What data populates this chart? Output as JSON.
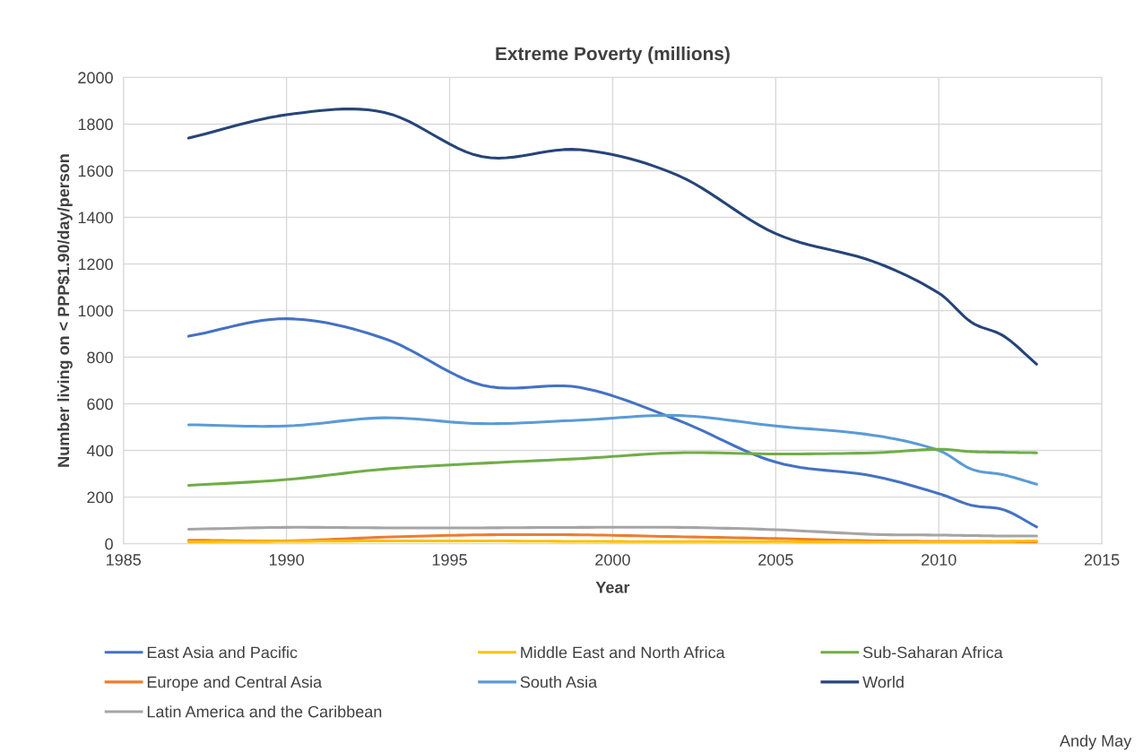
{
  "chart_data": {
    "type": "line",
    "title": "Extreme Poverty (millions)",
    "xlabel": "Year",
    "ylabel": "Number living on < PPP$1.90/day/person",
    "x": [
      1987,
      1990,
      1993,
      1996,
      1999,
      2002,
      2005,
      2008,
      2010,
      2011,
      2012,
      2013
    ],
    "series": [
      {
        "name": "East Asia and Pacific",
        "color": "#4472c4",
        "values": [
          890,
          965,
          880,
          680,
          670,
          530,
          350,
          290,
          215,
          165,
          145,
          72
        ]
      },
      {
        "name": "Europe and Central Asia",
        "color": "#ed7d31",
        "values": [
          15,
          12,
          28,
          38,
          38,
          30,
          22,
          12,
          10,
          10,
          9,
          8
        ]
      },
      {
        "name": "Latin America and the Caribbean",
        "color": "#a5a5a5",
        "values": [
          62,
          70,
          68,
          68,
          70,
          70,
          60,
          40,
          37,
          35,
          33,
          33
        ]
      },
      {
        "name": "Middle East and North Africa",
        "color": "#ffc000",
        "values": [
          8,
          10,
          12,
          12,
          10,
          9,
          9,
          7,
          7,
          8,
          10,
          12
        ]
      },
      {
        "name": "South Asia",
        "color": "#5b9bd5",
        "values": [
          510,
          505,
          540,
          515,
          530,
          550,
          505,
          465,
          400,
          320,
          295,
          255
        ]
      },
      {
        "name": "Sub-Saharan Africa",
        "color": "#70ad47",
        "values": [
          250,
          275,
          320,
          345,
          365,
          390,
          385,
          390,
          405,
          395,
          392,
          390
        ]
      },
      {
        "name": "World",
        "color": "#264478",
        "values": [
          1740,
          1840,
          1850,
          1660,
          1690,
          1580,
          1330,
          1210,
          1075,
          950,
          890,
          770
        ]
      }
    ],
    "xlim": [
      1985,
      2015
    ],
    "xticks": [
      1985,
      1990,
      1995,
      2000,
      2005,
      2010,
      2015
    ],
    "ylim": [
      0,
      2000
    ],
    "yticks": [
      0,
      200,
      400,
      600,
      800,
      1000,
      1200,
      1400,
      1600,
      1800,
      2000
    ],
    "grid": true,
    "legend": "bottom",
    "marker": "none",
    "line_style": "solid",
    "annotations": [
      "Andy May"
    ]
  }
}
